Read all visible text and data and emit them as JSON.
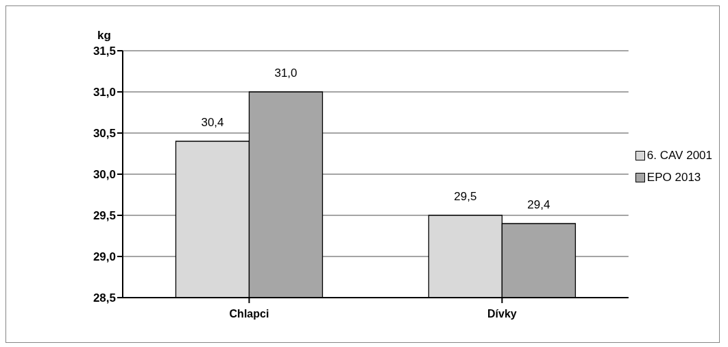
{
  "chart_data": {
    "type": "bar",
    "ylabel": "kg",
    "categories": [
      "Chlapci",
      "Dívky"
    ],
    "series": [
      {
        "name": "6. CAV 2001",
        "color": "#d9d9d9",
        "values": [
          30.4,
          29.5
        ],
        "value_labels": [
          "30,4",
          "29,5"
        ]
      },
      {
        "name": "EPO 2013",
        "color": "#a6a6a6",
        "values": [
          31.0,
          29.4
        ],
        "value_labels": [
          "31,0",
          "29,4"
        ]
      }
    ],
    "ylim": [
      28.5,
      31.5
    ],
    "yticks": [
      {
        "value": 28.5,
        "label": "28,5"
      },
      {
        "value": 29.0,
        "label": "29,0"
      },
      {
        "value": 29.5,
        "label": "29,5"
      },
      {
        "value": 30.0,
        "label": "30,0"
      },
      {
        "value": 30.5,
        "label": "30,5"
      },
      {
        "value": 31.0,
        "label": "31,0"
      },
      {
        "value": 31.5,
        "label": "31,5"
      }
    ],
    "grid": "y",
    "legend": "right"
  }
}
